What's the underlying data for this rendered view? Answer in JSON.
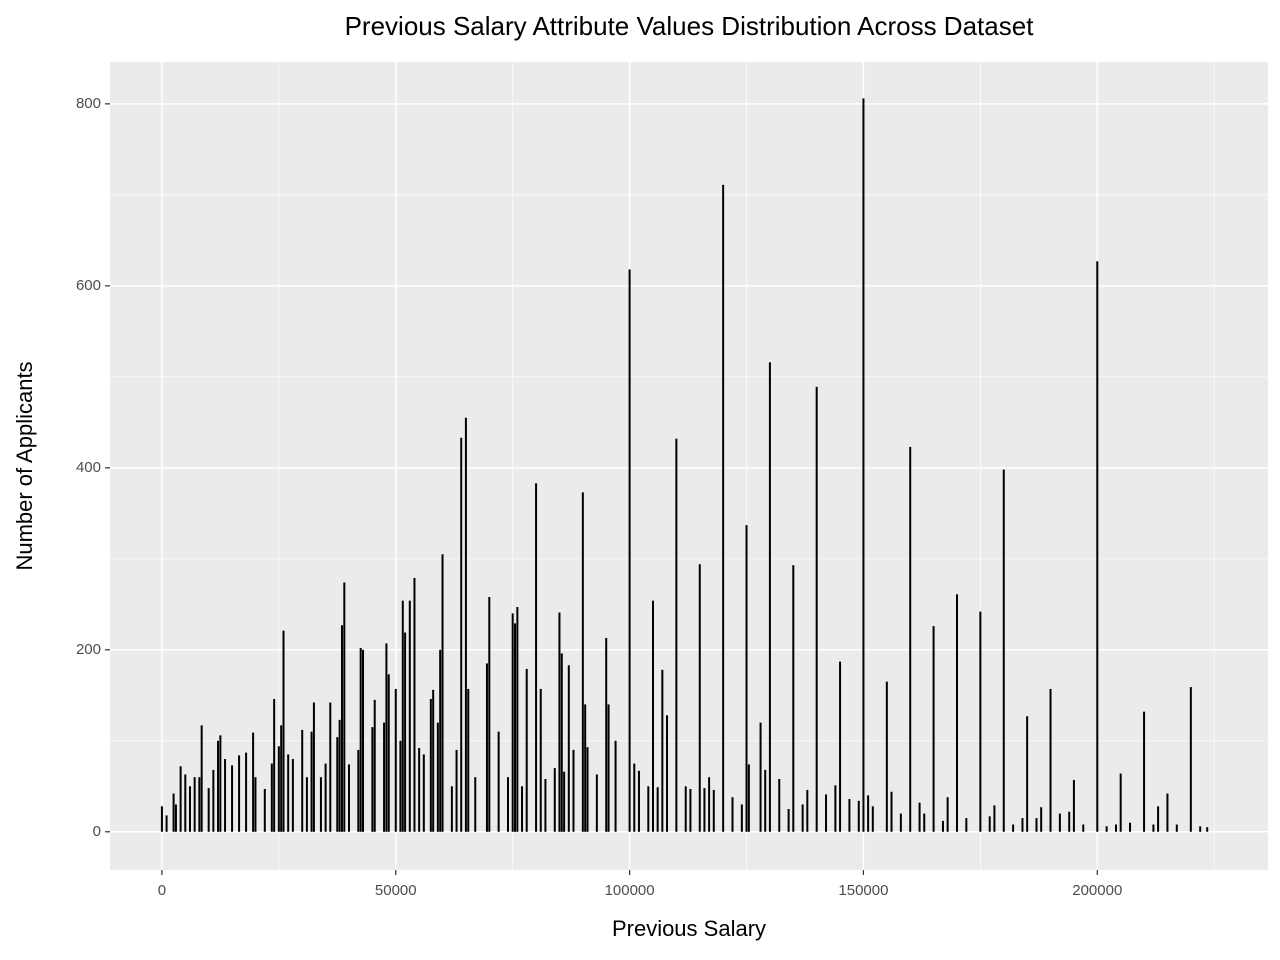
{
  "chart_data": {
    "type": "bar",
    "title": "Previous Salary Attribute Values Distribution Across Dataset",
    "x_label": "Previous Salary",
    "y_label": "Number of Applicants",
    "color": "#000000",
    "grid": true,
    "xlim": [
      -11100,
      236500
    ],
    "ylim": [
      -42,
      846
    ],
    "xticks": [
      0,
      50000,
      100000,
      150000,
      200000
    ],
    "yticks": [
      0,
      200,
      400,
      600,
      800
    ],
    "x": [
      0,
      1000,
      2500,
      3000,
      4000,
      5000,
      6000,
      7000,
      8000,
      8500,
      10000,
      11000,
      12000,
      12500,
      13500,
      15000,
      16500,
      18000,
      19500,
      20000,
      22000,
      23500,
      24000,
      25000,
      25500,
      26000,
      27000,
      28000,
      30000,
      31000,
      32000,
      32500,
      34000,
      35000,
      36000,
      37500,
      38000,
      38500,
      39000,
      40000,
      42000,
      42500,
      43000,
      45000,
      45500,
      47500,
      48000,
      48500,
      50000,
      51000,
      51500,
      52000,
      53000,
      54000,
      55000,
      56000,
      57500,
      58000,
      59000,
      59500,
      60000,
      62000,
      63000,
      64000,
      65000,
      65500,
      67000,
      69500,
      70000,
      72000,
      74000,
      75000,
      75500,
      76000,
      77000,
      78000,
      80000,
      81000,
      82000,
      84000,
      85000,
      85500,
      86000,
      87000,
      88000,
      90000,
      90500,
      91000,
      93000,
      95000,
      95500,
      97000,
      100000,
      101000,
      102000,
      104000,
      105000,
      106000,
      107000,
      108000,
      110000,
      112000,
      113000,
      115000,
      116000,
      117000,
      118000,
      120000,
      122000,
      124000,
      125000,
      125500,
      128000,
      129000,
      130000,
      132000,
      134000,
      135000,
      137000,
      138000,
      140000,
      142000,
      144000,
      145000,
      147000,
      149000,
      150000,
      151000,
      152000,
      155000,
      156000,
      158000,
      160000,
      162000,
      163000,
      165000,
      167000,
      168000,
      170000,
      172000,
      175000,
      177000,
      178000,
      180000,
      182000,
      184000,
      185000,
      187000,
      188000,
      190000,
      192000,
      194000,
      195000,
      197000,
      200000,
      202000,
      204000,
      205000,
      207000,
      210000,
      212000,
      213000,
      215000,
      217000,
      220000,
      222000,
      223500
    ],
    "values": [
      28,
      18,
      42,
      30,
      72,
      63,
      50,
      60,
      60,
      117,
      48,
      68,
      100,
      106,
      80,
      73,
      84,
      87,
      109,
      60,
      47,
      75,
      146,
      94,
      117,
      221,
      85,
      80,
      112,
      60,
      110,
      142,
      60,
      75,
      142,
      104,
      123,
      227,
      274,
      74,
      90,
      202,
      200,
      115,
      145,
      120,
      207,
      173,
      157,
      100,
      254,
      219,
      254,
      279,
      92,
      85,
      146,
      156,
      120,
      200,
      305,
      50,
      90,
      433,
      455,
      157,
      60,
      185,
      258,
      110,
      60,
      240,
      229,
      247,
      50,
      179,
      383,
      157,
      58,
      70,
      241,
      196,
      66,
      183,
      90,
      373,
      140,
      93,
      63,
      213,
      140,
      100,
      618,
      75,
      67,
      50,
      254,
      49,
      178,
      128,
      432,
      50,
      47,
      294,
      48,
      60,
      46,
      711,
      38,
      30,
      337,
      74,
      120,
      68,
      516,
      58,
      25,
      293,
      30,
      46,
      489,
      41,
      51,
      187,
      36,
      34,
      806,
      40,
      28,
      165,
      44,
      20,
      423,
      32,
      20,
      226,
      12,
      38,
      261,
      15,
      242,
      17,
      29,
      398,
      8,
      15,
      127,
      15,
      27,
      157,
      20,
      22,
      57,
      8,
      627,
      6,
      8,
      64,
      10,
      132,
      8,
      28,
      42,
      8,
      159,
      6,
      5
    ]
  }
}
